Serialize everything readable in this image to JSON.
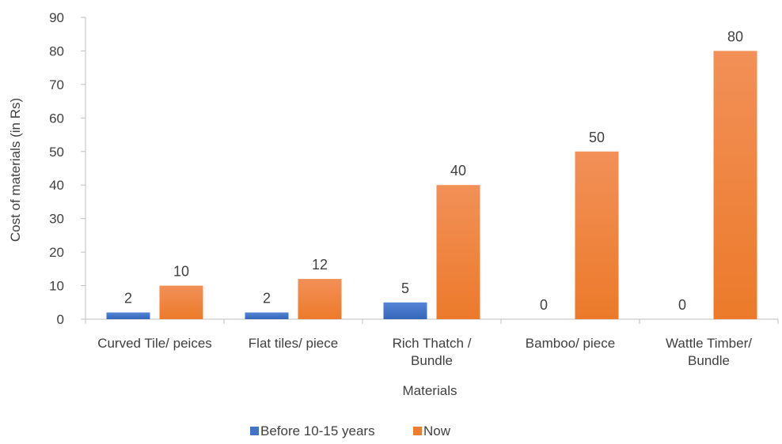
{
  "chart_data": {
    "type": "bar",
    "categories": [
      [
        "Curved Tile/ peices"
      ],
      [
        "Flat tiles/ piece"
      ],
      [
        "Rich Thatch /",
        "Bundle"
      ],
      [
        "Bamboo/ piece"
      ],
      [
        "Wattle Timber/",
        "Bundle"
      ]
    ],
    "series": [
      {
        "name": "Before 10-15 years",
        "values": [
          2,
          2,
          5,
          0,
          0
        ],
        "color": "#4472C4"
      },
      {
        "name": "Now",
        "values": [
          10,
          12,
          40,
          50,
          80
        ],
        "color": "#ED7D31"
      }
    ],
    "xlabel": "Materials",
    "ylabel": "Cost of materials (in Rs)",
    "ylim": [
      0,
      90
    ],
    "yticks": [
      0,
      10,
      20,
      30,
      40,
      50,
      60,
      70,
      80,
      90
    ],
    "data_labels": [
      [
        "2",
        "2",
        "5",
        "0",
        "0"
      ],
      [
        "10",
        "12",
        "40",
        "50",
        "80"
      ]
    ],
    "grid": false,
    "legend_position": "bottom"
  }
}
